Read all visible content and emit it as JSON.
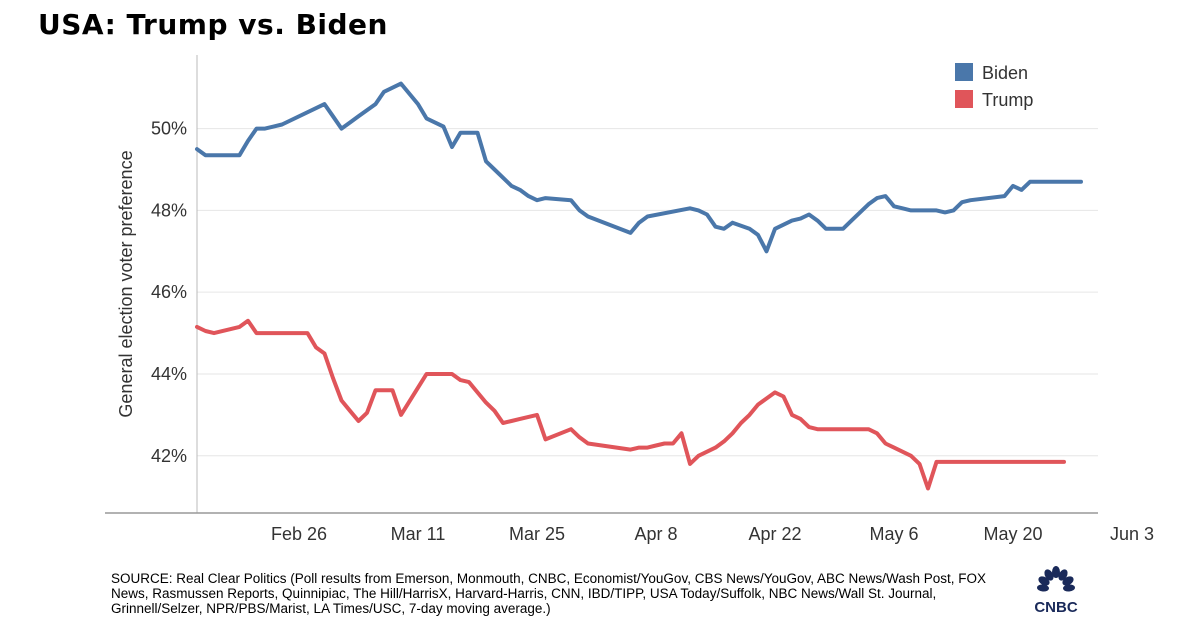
{
  "header": {
    "title": "USA: Trump vs. Biden"
  },
  "chart_data": {
    "type": "line",
    "title": "USA: Trump vs. Biden",
    "xlabel": "",
    "ylabel": "General election voter preference",
    "ylim": [
      40.6,
      51.8
    ],
    "y_ticks": [
      42,
      44,
      46,
      48,
      50
    ],
    "y_tick_labels": [
      "42%",
      "44%",
      "46%",
      "48%",
      "50%"
    ],
    "xlim": [
      0,
      106
    ],
    "x_ticks": [
      {
        "x": 12,
        "label": "Feb 26"
      },
      {
        "x": 26,
        "label": "Mar 11"
      },
      {
        "x": 40,
        "label": "Mar 25"
      },
      {
        "x": 54,
        "label": "Apr 8"
      },
      {
        "x": 68,
        "label": "Apr 22"
      },
      {
        "x": 82,
        "label": "May 6"
      },
      {
        "x": 96,
        "label": "May 20"
      },
      {
        "x": 110,
        "label": "Jun 3"
      }
    ],
    "grid": true,
    "legend_position": "top-right",
    "series": [
      {
        "name": "Biden",
        "color": "#4a77aa",
        "x": [
          0,
          1,
          5,
          6,
          7,
          8,
          9,
          10,
          15,
          16,
          17,
          18,
          19,
          21,
          22,
          24,
          26,
          27,
          29,
          30,
          31,
          33,
          34,
          35,
          36,
          37,
          38,
          39,
          40,
          41,
          44,
          45,
          46,
          51,
          52,
          53,
          58,
          59,
          60,
          61,
          62,
          63,
          65,
          66,
          67,
          68,
          69,
          70,
          71,
          72,
          73,
          74,
          76,
          77,
          79,
          80,
          81,
          82,
          83,
          84,
          85,
          86,
          87,
          88,
          89,
          90,
          91,
          95,
          96,
          97,
          98,
          99,
          100,
          101,
          102,
          103,
          104
        ],
        "values": [
          49.5,
          49.35,
          49.35,
          49.7,
          50.0,
          50.0,
          50.05,
          50.1,
          50.6,
          50.3,
          50.0,
          50.15,
          50.3,
          50.6,
          50.9,
          51.1,
          50.6,
          50.25,
          50.05,
          49.55,
          49.9,
          49.9,
          49.2,
          49.0,
          48.8,
          48.6,
          48.5,
          48.35,
          48.25,
          48.3,
          48.25,
          48.0,
          47.85,
          47.45,
          47.7,
          47.85,
          48.05,
          48.0,
          47.9,
          47.6,
          47.55,
          47.7,
          47.55,
          47.4,
          47.0,
          47.55,
          47.65,
          47.75,
          47.8,
          47.9,
          47.75,
          47.55,
          47.55,
          47.75,
          48.15,
          48.3,
          48.35,
          48.1,
          48.05,
          48.0,
          48.0,
          48.0,
          48.0,
          47.95,
          48.0,
          48.2,
          48.25,
          48.35,
          48.6,
          48.5,
          48.7,
          48.7,
          48.7,
          48.7,
          48.7,
          48.7,
          48.7
        ]
      },
      {
        "name": "Trump",
        "color": "#e0555a",
        "x": [
          0,
          1,
          2,
          5,
          6,
          7,
          8,
          13,
          14,
          15,
          16,
          17,
          18,
          19,
          20,
          21,
          22,
          23,
          24,
          27,
          28,
          29,
          30,
          31,
          32,
          33,
          34,
          35,
          36,
          37,
          38,
          39,
          40,
          41,
          44,
          45,
          46,
          51,
          52,
          53,
          54,
          55,
          56,
          57,
          58,
          59,
          60,
          61,
          62,
          63,
          64,
          65,
          66,
          67,
          68,
          69,
          70,
          71,
          72,
          73,
          74,
          75,
          76,
          77,
          78,
          79,
          80,
          81,
          82,
          83,
          84,
          85,
          86,
          87,
          88,
          89,
          90,
          91,
          92,
          93,
          94,
          95,
          96,
          97,
          98,
          99,
          100,
          101,
          102
        ],
        "values": [
          45.15,
          45.05,
          45.0,
          45.15,
          45.3,
          45.0,
          45.0,
          45.0,
          44.65,
          44.5,
          43.9,
          43.35,
          43.1,
          42.85,
          43.05,
          43.6,
          43.6,
          43.6,
          43.0,
          44.0,
          44.0,
          44.0,
          44.0,
          43.85,
          43.8,
          43.55,
          43.3,
          43.1,
          42.8,
          42.85,
          42.9,
          42.95,
          43.0,
          42.4,
          42.65,
          42.45,
          42.3,
          42.15,
          42.2,
          42.2,
          42.25,
          42.3,
          42.3,
          42.55,
          41.8,
          42.0,
          42.1,
          42.2,
          42.35,
          42.55,
          42.8,
          43.0,
          43.25,
          43.4,
          43.55,
          43.45,
          43.0,
          42.9,
          42.7,
          42.65,
          42.65,
          42.65,
          42.65,
          42.65,
          42.65,
          42.65,
          42.55,
          42.3,
          42.2,
          42.1,
          42.0,
          41.8,
          41.2,
          41.85,
          41.85,
          41.85,
          41.85,
          41.85,
          41.85,
          41.85,
          41.85,
          41.85,
          41.85,
          41.85,
          41.85,
          41.85,
          41.85,
          41.85,
          41.85
        ]
      }
    ]
  },
  "footer": {
    "source": "SOURCE: Real Clear Politics (Poll results from Emerson, Monmouth, CNBC, Economist/YouGov, CBS News/YouGov, ABC News/Wash Post, FOX News, Rasmussen Reports, Quinnipiac, The Hill/HarrisX, Harvard-Harris, CNN, IBD/TIPP, USA Today/Suffolk, NBC News/Wall St. Journal, Grinnell/Selzer, NPR/PBS/Marist, LA Times/USC, 7-day moving average.)",
    "logo_text": "CNBC"
  }
}
